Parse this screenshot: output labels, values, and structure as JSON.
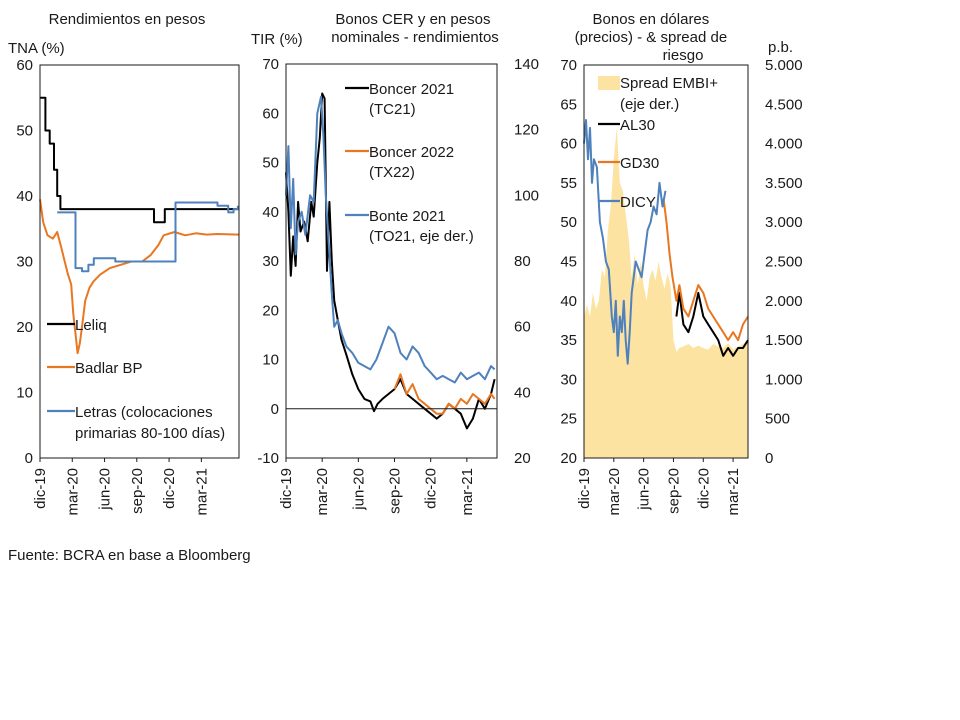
{
  "source": "Fuente: BCRA en base a Bloomberg",
  "chart_data": [
    {
      "type": "line",
      "title": "Rendimientos en pesos",
      "ylabel": "TNA (%)",
      "ylim": [
        0,
        60
      ],
      "yticks": [
        0,
        10,
        20,
        30,
        40,
        50,
        60
      ],
      "xlim": [
        0,
        18.5
      ],
      "xticks": [
        {
          "label": "dic-19",
          "pos": 0
        },
        {
          "label": "mar-20",
          "pos": 3
        },
        {
          "label": "jun-20",
          "pos": 6
        },
        {
          "label": "sep-20",
          "pos": 9
        },
        {
          "label": "dic-20",
          "pos": 12
        },
        {
          "label": "mar-21",
          "pos": 15
        }
      ],
      "series": [
        {
          "name": "Leliq",
          "color": "#000000",
          "step": true,
          "x": [
            0,
            0.5,
            0.9,
            1.3,
            1.6,
            1.9,
            2.3,
            10.3,
            10.6,
            11.3,
            11.6,
            18.5
          ],
          "y": [
            55,
            50,
            48,
            44,
            40,
            38,
            38,
            38,
            36,
            36,
            38,
            38
          ]
        },
        {
          "name": "Badlar BP",
          "color": "#e87722",
          "x": [
            0,
            0.3,
            0.7,
            1.2,
            1.6,
            2.0,
            2.3,
            2.6,
            2.9,
            3.1,
            3.3,
            3.5,
            3.7,
            3.9,
            4.2,
            4.6,
            5.0,
            5.6,
            6.5,
            7.5,
            8.5,
            9.5,
            10.3,
            11.0,
            11.5,
            12.5,
            13.5,
            14.5,
            15.5,
            16.5,
            18.5
          ],
          "y": [
            39.5,
            36,
            34,
            33.5,
            34.5,
            32,
            30,
            28,
            26.5,
            22,
            19,
            16,
            17.5,
            20,
            24,
            26,
            27,
            28,
            29,
            29.5,
            30,
            30,
            31,
            32.5,
            34,
            34.5,
            34,
            34.3,
            34.1,
            34.2,
            34.1
          ]
        },
        {
          "name": "Letras (colocaciones primarias 80-100 días)",
          "color": "#4f81bd",
          "step": true,
          "x": [
            1.6,
            3.1,
            3.3,
            3.9,
            4.5,
            5.0,
            7.0,
            9.3,
            11.0,
            12.3,
            12.6,
            16.5,
            17.5,
            18.0,
            18.4
          ],
          "y": [
            37.5,
            37.5,
            29,
            28.5,
            29.5,
            30.5,
            30,
            30,
            30,
            30,
            39,
            38.5,
            37.5,
            38,
            38.5
          ]
        }
      ],
      "legend": [
        {
          "label": "Leliq"
        },
        {
          "label": "Badlar BP"
        },
        {
          "label": "Letras (colocaciones primarias 80-100 días)"
        }
      ]
    },
    {
      "type": "line",
      "title": "Bonos CER y en pesos nominales - rendimientos",
      "ylabel": "TIR (%)",
      "ylim": [
        -10,
        70
      ],
      "yticks": [
        -10,
        0,
        10,
        20,
        30,
        40,
        50,
        60,
        70
      ],
      "y2lim": [
        20,
        140
      ],
      "y2ticks": [
        20,
        40,
        60,
        80,
        100,
        120,
        140
      ],
      "xlim": [
        0,
        17.5
      ],
      "xticks": [
        {
          "label": "dic-19",
          "pos": 0
        },
        {
          "label": "mar-20",
          "pos": 3
        },
        {
          "label": "jun-20",
          "pos": 6
        },
        {
          "label": "sep-20",
          "pos": 9
        },
        {
          "label": "dic-20",
          "pos": 12
        },
        {
          "label": "mar-21",
          "pos": 15
        }
      ],
      "series": [
        {
          "name": "Boncer 2021 (TC21)",
          "color": "#000000",
          "axis": "left",
          "x": [
            0,
            0.2,
            0.4,
            0.6,
            0.8,
            1.0,
            1.2,
            1.5,
            1.8,
            2.1,
            2.3,
            2.6,
            2.8,
            3.0,
            3.2,
            3.4,
            3.6,
            3.8,
            4.0,
            4.3,
            4.6,
            5.0,
            5.5,
            6.0,
            6.5,
            7.0,
            7.3,
            7.6,
            8.0,
            8.5,
            9.0,
            9.5,
            10.0,
            10.5,
            11.0,
            11.5,
            12.0,
            12.5,
            13.0,
            13.5,
            14.0,
            14.5,
            15.0,
            15.5,
            16.0,
            16.5,
            17.0,
            17.3
          ],
          "y": [
            48,
            40,
            27,
            35,
            29,
            42,
            36,
            38,
            34,
            42,
            39,
            50,
            55,
            64,
            63,
            28,
            42,
            30,
            22,
            18,
            14,
            11,
            7,
            4,
            2,
            1.5,
            -0.5,
            1,
            2,
            3,
            4,
            6,
            3,
            2,
            1,
            0,
            -1,
            -2,
            -1,
            1,
            0,
            -1,
            -4,
            -2,
            2,
            0,
            3,
            6
          ]
        },
        {
          "name": "Boncer 2022 (TX22)",
          "color": "#e87722",
          "axis": "left",
          "x": [
            9.0,
            9.5,
            10.0,
            10.5,
            11.0,
            11.5,
            12.0,
            12.5,
            13.0,
            13.5,
            14.0,
            14.5,
            15.0,
            15.5,
            16.0,
            16.5,
            17.0,
            17.3
          ],
          "y": [
            4,
            7,
            3,
            5,
            2,
            1,
            0,
            -1,
            -1,
            1,
            0,
            2,
            1,
            3,
            2,
            1,
            3,
            2
          ]
        },
        {
          "name": "Bonte 2021 (TO21, eje der.)",
          "color": "#4f81bd",
          "axis": "right",
          "x": [
            0,
            0.2,
            0.4,
            0.6,
            0.8,
            1.0,
            1.3,
            1.6,
            2.0,
            2.3,
            2.6,
            2.9,
            3.1,
            3.3,
            3.5,
            3.8,
            4.0,
            4.3,
            4.6,
            5.0,
            5.5,
            6.0,
            6.5,
            7.0,
            7.5,
            8.0,
            8.5,
            9.0,
            9.5,
            10.0,
            10.5,
            11.0,
            11.5,
            12.0,
            12.5,
            13.0,
            13.5,
            14.0,
            14.5,
            15.0,
            15.5,
            16.0,
            16.5,
            17.0,
            17.3
          ],
          "y": [
            100,
            115,
            90,
            105,
            82,
            92,
            95,
            88,
            100,
            98,
            125,
            130,
            118,
            100,
            88,
            70,
            60,
            62,
            58,
            54,
            52,
            49,
            48,
            47,
            50,
            55,
            60,
            58,
            52,
            50,
            54,
            52,
            48,
            46,
            44,
            45,
            44,
            43,
            46,
            44,
            45,
            46,
            44,
            48,
            47
          ]
        }
      ],
      "legend": [
        {
          "label": "Boncer 2021 (TC21)"
        },
        {
          "label": "Boncer 2022 (TX22)"
        },
        {
          "label": "Bonte 2021 (TO21, eje der.)"
        }
      ]
    },
    {
      "type": "line",
      "title": "Bonos en dólares (precios) - & spread de riesgo",
      "ylim": [
        20,
        70
      ],
      "yticks": [
        20,
        25,
        30,
        35,
        40,
        45,
        50,
        55,
        60,
        65,
        70
      ],
      "y2label": "p.b.",
      "y2lim": [
        0,
        5000
      ],
      "y2ticks": [
        0,
        500,
        1000,
        1500,
        2000,
        2500,
        3000,
        3500,
        4000,
        4500,
        5000
      ],
      "xlim": [
        0,
        16.5
      ],
      "xticks": [
        {
          "label": "dic-19",
          "pos": 0
        },
        {
          "label": "mar-20",
          "pos": 3
        },
        {
          "label": "jun-20",
          "pos": 6
        },
        {
          "label": "sep-20",
          "pos": 9
        },
        {
          "label": "dic-20",
          "pos": 12
        },
        {
          "label": "mar-21",
          "pos": 15
        }
      ],
      "series": [
        {
          "name": "Spread EMBI+ (eje der.)",
          "type": "area",
          "axis": "right",
          "color": "#fde3a1",
          "x": [
            0,
            0.3,
            0.6,
            0.9,
            1.2,
            1.5,
            1.8,
            2.1,
            2.4,
            2.7,
            3.0,
            3.3,
            3.6,
            3.9,
            4.2,
            4.5,
            4.8,
            5.1,
            5.4,
            5.7,
            6.0,
            6.3,
            6.6,
            6.9,
            7.2,
            7.5,
            7.8,
            8.1,
            8.4,
            8.7,
            9.0,
            9.3,
            9.6,
            10.0,
            10.5,
            11.0,
            11.5,
            12.0,
            12.5,
            13.0,
            13.5,
            14.0,
            14.5,
            15.0,
            15.5,
            16.0,
            16.5
          ],
          "y": [
            1800,
            1950,
            1800,
            2100,
            1900,
            2000,
            2400,
            2300,
            2900,
            3200,
            3800,
            4200,
            3500,
            3400,
            3100,
            2800,
            2300,
            2600,
            2200,
            2500,
            2200,
            2000,
            2300,
            2400,
            2250,
            2500,
            2300,
            2150,
            2350,
            2200,
            1500,
            1350,
            1400,
            1420,
            1450,
            1400,
            1430,
            1400,
            1380,
            1450,
            1420,
            1400,
            1460,
            1380,
            1420,
            1450,
            1500
          ]
        },
        {
          "name": "AL30",
          "color": "#000000",
          "axis": "left",
          "x": [
            9.3,
            9.6,
            10.0,
            10.5,
            11.0,
            11.5,
            12.0,
            12.5,
            13.0,
            13.5,
            14.0,
            14.5,
            15.0,
            15.5,
            16.0,
            16.5
          ],
          "y": [
            38,
            41,
            37,
            36,
            38,
            41,
            38,
            37,
            36,
            35,
            33,
            34,
            33,
            34,
            34,
            35
          ]
        },
        {
          "name": "GD30",
          "color": "#e87722",
          "axis": "left",
          "x": [
            8.0,
            8.3,
            8.6,
            8.9,
            9.3,
            9.6,
            10.0,
            10.5,
            11.0,
            11.5,
            12.0,
            12.5,
            13.0,
            13.5,
            14.0,
            14.5,
            15.0,
            15.5,
            16.0,
            16.5
          ],
          "y": [
            53,
            50,
            46,
            43,
            40,
            42,
            39,
            38,
            40,
            42,
            41,
            39,
            38,
            37,
            36,
            35,
            36,
            35,
            37,
            38
          ]
        },
        {
          "name": "DICY",
          "color": "#4f81bd",
          "axis": "left",
          "x": [
            0,
            0.2,
            0.4,
            0.6,
            0.8,
            1.0,
            1.3,
            1.6,
            1.9,
            2.2,
            2.5,
            2.8,
            3.0,
            3.2,
            3.4,
            3.6,
            3.8,
            4.0,
            4.2,
            4.4,
            4.6,
            4.8,
            5.0,
            5.2,
            5.5,
            5.8,
            6.1,
            6.4,
            6.7,
            7.0,
            7.3,
            7.6,
            7.9,
            8.2
          ],
          "y": [
            60,
            63,
            58,
            62,
            55,
            58,
            57,
            50,
            48,
            45,
            44,
            38,
            36,
            40,
            33,
            38,
            36,
            40,
            35,
            32,
            36,
            41,
            43,
            45,
            44,
            43,
            46,
            49,
            50,
            52,
            51,
            55,
            52,
            54
          ]
        }
      ],
      "legend": [
        {
          "label": "Spread EMBI+"
        },
        {
          "label": "(eje der.)"
        },
        {
          "label": "AL30"
        },
        {
          "label": "GD30"
        },
        {
          "label": "DICY"
        }
      ]
    }
  ]
}
